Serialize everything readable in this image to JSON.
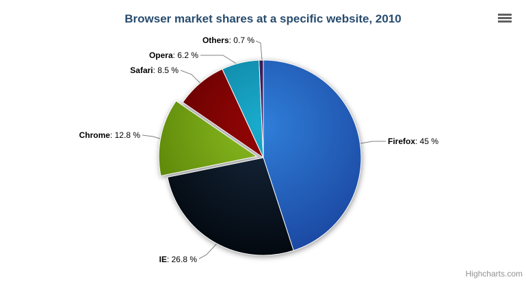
{
  "header": {
    "title": "Browser market shares at a specific website, 2010",
    "title_color": "#274b6d"
  },
  "menu": {
    "icon": "hamburger-menu-icon",
    "color": "#606060"
  },
  "credits": {
    "label": "Highcharts.com",
    "color": "#909090"
  },
  "chart_data": {
    "type": "pie",
    "title": "Browser market shares at a specific website, 2010",
    "unit": "%",
    "legend_position": "none",
    "label_format": "<name>: <value> %",
    "start_angle": 0,
    "total": 100,
    "points": [
      {
        "name": "Firefox",
        "value": 45,
        "display": "45",
        "color": "#2f7ed8",
        "edge_color": "#1a459f",
        "sliced": false
      },
      {
        "name": "IE",
        "value": 26.8,
        "display": "26.8",
        "color": "#17293f",
        "edge_color": "#02070d",
        "sliced": false
      },
      {
        "name": "Chrome",
        "value": 12.8,
        "display": "12.8",
        "color": "#8bbc21",
        "edge_color": "#537c04",
        "sliced": true
      },
      {
        "name": "Safari",
        "value": 8.5,
        "display": "8.5",
        "color": "#960505",
        "edge_color": "#570000",
        "sliced": false
      },
      {
        "name": "Opera",
        "value": 6.2,
        "display": "6.2",
        "color": "#1aadce",
        "edge_color": "#0c7291",
        "sliced": false
      },
      {
        "name": "Others",
        "value": 0.7,
        "display": "0.7",
        "color": "#492970",
        "edge_color": "#20103c",
        "sliced": false
      }
    ]
  }
}
